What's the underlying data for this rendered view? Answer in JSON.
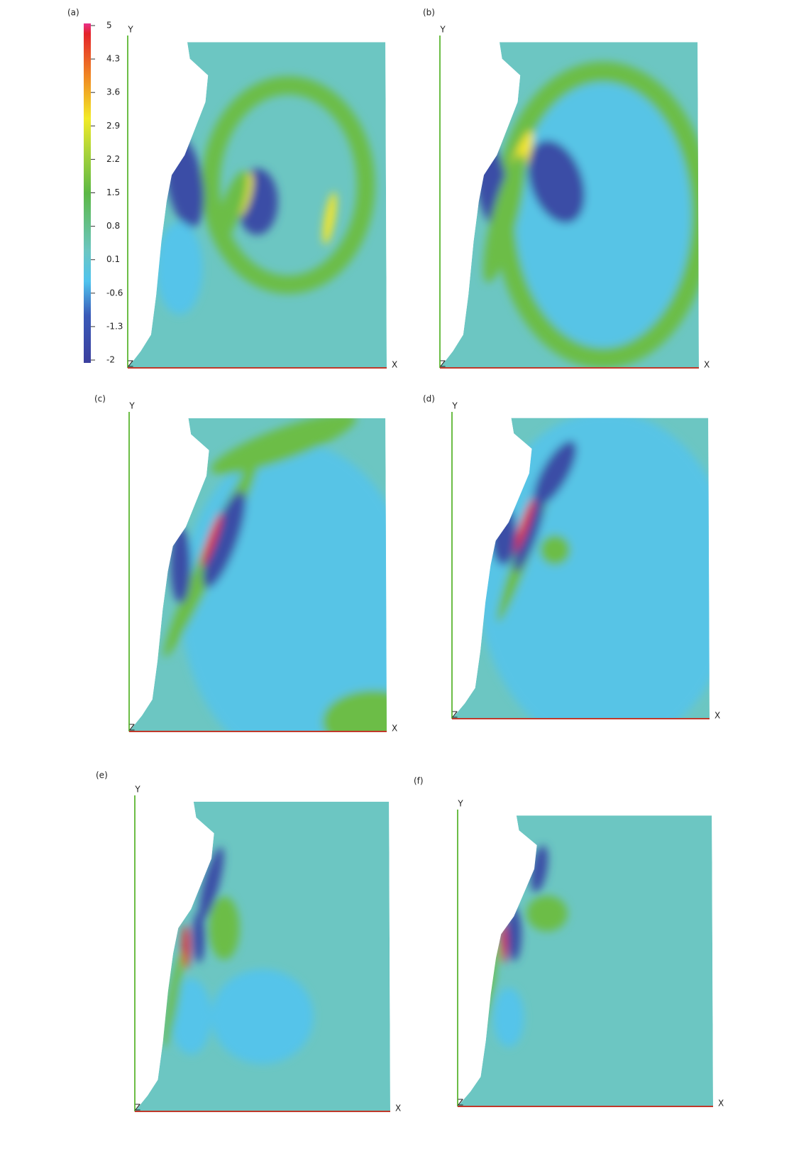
{
  "colorbar": {
    "ticks": [
      5,
      4.3,
      3.6,
      2.9,
      2.2,
      1.5,
      0.8,
      0.1,
      -0.6,
      -1.3,
      -2
    ]
  },
  "panels": [
    {
      "label": "(a)",
      "y_axis": "Y",
      "x_axis": "X",
      "z_axis": "Z"
    },
    {
      "label": "(b)",
      "y_axis": "Y",
      "x_axis": "X",
      "z_axis": "Z"
    },
    {
      "label": "(c)",
      "y_axis": "Y",
      "x_axis": "X",
      "z_axis": "Z"
    },
    {
      "label": "(d)",
      "y_axis": "Y",
      "x_axis": "X",
      "z_axis": "Z"
    },
    {
      "label": "(e)",
      "y_axis": "Y",
      "x_axis": "X",
      "z_axis": "Z"
    },
    {
      "label": "(f)",
      "y_axis": "Y",
      "x_axis": "X",
      "z_axis": "Z"
    }
  ]
}
